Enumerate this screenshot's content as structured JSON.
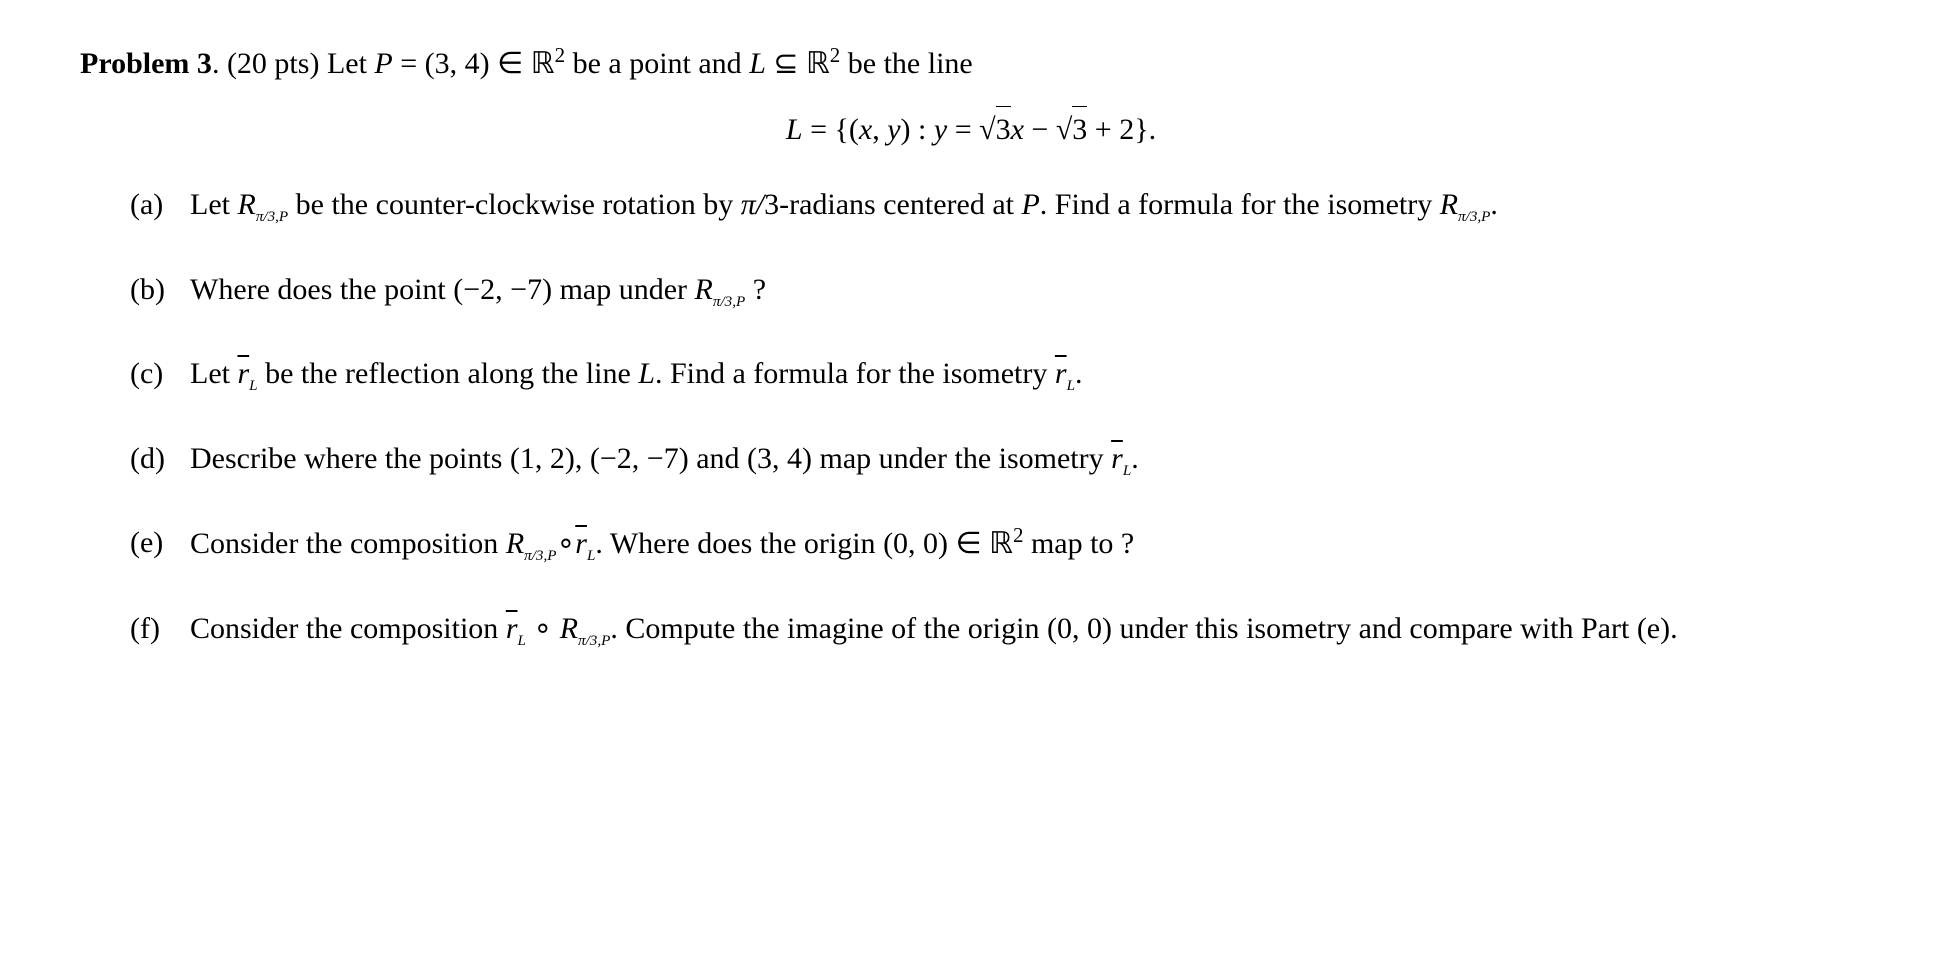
{
  "problem": {
    "title_prefix": "Problem 3",
    "points": "(20 pts)",
    "intro_text": "Let",
    "point_def": "P = (3, 4) ∈ ℝ",
    "intro_text2": "be a point and",
    "line_sym": "L ⊆ ℝ",
    "intro_text3": "be the line",
    "equation_lhs": "L = {(x, y) : y = ",
    "equation_mid1": "3",
    "equation_mid2": "x − ",
    "equation_mid3": "3",
    "equation_rhs": " + 2}."
  },
  "parts": {
    "a": {
      "label": "(a)",
      "text1": "Let ",
      "rsym": "R",
      "rsub": "π/3,P",
      "text2": " be the counter-clockwise rotation by ",
      "pi3": "π/3",
      "text3": "-radians centered at ",
      "P": "P",
      "text4": ". Find a formula for the isometry ",
      "text5": "."
    },
    "b": {
      "label": "(b)",
      "text1": "Where does the point ",
      "point": "(−2, −7)",
      "text2": " map under ",
      "text3": " ?"
    },
    "c": {
      "label": "(c)",
      "text1": "Let ",
      "rbar": "r̄",
      "rsub": "L",
      "text2": " be the reflection along the line ",
      "L": "L",
      "text3": ". Find a formula for the isometry ",
      "text4": "."
    },
    "d": {
      "label": "(d)",
      "text1": "Describe where the points ",
      "p1": "(1, 2)",
      "comma1": ", ",
      "p2": "(−2, −7)",
      "and": " and ",
      "p3": "(3, 4)",
      "text2": " map under the isometry ",
      "text3": "."
    },
    "e": {
      "label": "(e)",
      "text1": "Consider the composition ",
      "comp1a": "R",
      "comp1sub": "π/3,P",
      "circ": "∘",
      "comp2": "r̄",
      "comp2sub": "L",
      "text2": ". Where does the origin ",
      "origin": "(0, 0) ∈ ℝ",
      "text3": " map to ?"
    },
    "f": {
      "label": "(f)",
      "text1": "Consider the composition ",
      "comp1": "r̄",
      "comp1sub": "L",
      "circ": " ∘ ",
      "comp2a": "R",
      "comp2sub": "π/3,P",
      "text2": ". Compute the imagine of the origin ",
      "origin": "(0, 0)",
      "text3": " under this isometry and compare with Part (e)."
    }
  },
  "styling": {
    "font_family": "Times New Roman, Latin Modern Roman, serif",
    "font_size_pt": 30,
    "text_color": "#000000",
    "background_color": "#ffffff",
    "line_height": 1.5
  }
}
